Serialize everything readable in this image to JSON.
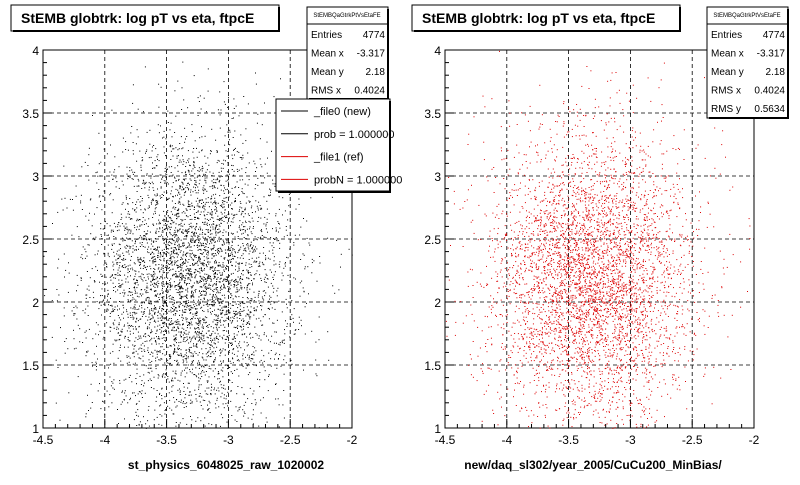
{
  "chart_data": [
    {
      "type": "scatter",
      "title": "StEMB globtrk: log pT vs eta, ftpcE",
      "xlabel": "st_physics_6048025_raw_1020002",
      "ylabel": "",
      "xlim": [
        -4.5,
        -2
      ],
      "ylim": [
        1,
        4
      ],
      "xticks": [
        "-4.5",
        "-4",
        "-3.5",
        "-3",
        "-2.5",
        "-2"
      ],
      "yticks": [
        "1",
        "1.5",
        "2",
        "2.5",
        "3",
        "3.5",
        "4"
      ],
      "grid": true,
      "marker_color": "#000000",
      "stats": {
        "name": "StEMBQaGtrkPtVsEtaFE",
        "rows": [
          {
            "label": "Entries",
            "value": "4774"
          },
          {
            "label": "Mean x",
            "value": "-3.317"
          },
          {
            "label": "Mean y",
            "value": "2.18"
          },
          {
            "label": "RMS x",
            "value": "0.4024"
          }
        ]
      },
      "legend": {
        "placement": "top-right",
        "entries": [
          {
            "label": "_file0 (new)",
            "color": "#000000"
          },
          {
            "label": "prob = 1.000000",
            "color": "#000000"
          },
          {
            "label": "_file1 (ref)",
            "color": "#dd0000"
          },
          {
            "label": "probN = 1.000000",
            "color": "#dd0000"
          }
        ]
      },
      "distribution": {
        "count": 4774,
        "mean_x": -3.317,
        "mean_y": 2.18,
        "rms_x": 0.4024,
        "rms_y": 0.5634
      }
    },
    {
      "type": "scatter",
      "title": "StEMB globtrk: log pT vs eta, ftpcE",
      "xlabel": "new/daq_sl302/year_2005/CuCu200_MinBias/",
      "ylabel": "",
      "xlim": [
        -4.5,
        -2
      ],
      "ylim": [
        1,
        4
      ],
      "xticks": [
        "-4.5",
        "-4",
        "-3.5",
        "-3",
        "-2.5",
        "-2"
      ],
      "yticks": [
        "1",
        "1.5",
        "2",
        "2.5",
        "3",
        "3.5",
        "4"
      ],
      "grid": true,
      "marker_color": "#dd0000",
      "stats": {
        "name": "StEMBQaGtrkPtVsEtaFE",
        "rows": [
          {
            "label": "Entries",
            "value": "4774"
          },
          {
            "label": "Mean x",
            "value": "-3.317"
          },
          {
            "label": "Mean y",
            "value": "2.18"
          },
          {
            "label": "RMS x",
            "value": "0.4024"
          },
          {
            "label": "RMS y",
            "value": "0.5634"
          }
        ]
      },
      "distribution": {
        "count": 4774,
        "mean_x": -3.317,
        "mean_y": 2.18,
        "rms_x": 0.4024,
        "rms_y": 0.5634
      }
    }
  ]
}
